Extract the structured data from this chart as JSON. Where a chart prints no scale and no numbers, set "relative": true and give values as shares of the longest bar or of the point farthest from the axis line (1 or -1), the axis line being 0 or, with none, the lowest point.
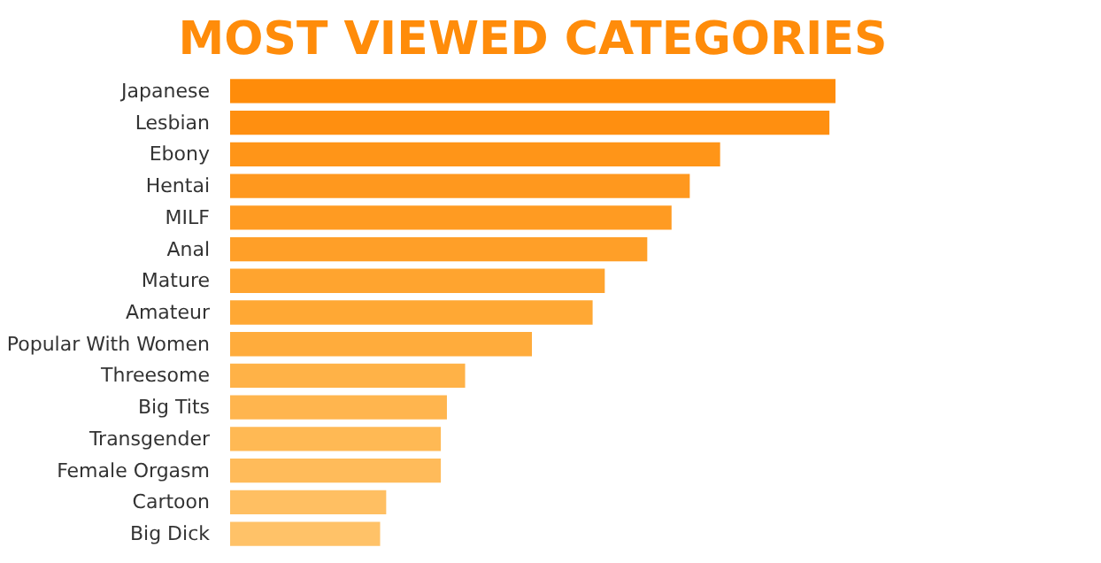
{
  "chart_data": {
    "type": "bar",
    "orientation": "horizontal",
    "relative": true,
    "title": "MOST VIEWED CATEGORIES",
    "categories": [
      "Japanese",
      "Lesbian",
      "Ebony",
      "Hentai",
      "MILF",
      "Anal",
      "Mature",
      "Amateur",
      "Popular With Women",
      "Threesome",
      "Big Tits",
      "Transgender",
      "Female Orgasm",
      "Cartoon",
      "Big Dick"
    ],
    "values": [
      1,
      0.99,
      0.81,
      0.76,
      0.73,
      0.69,
      0.62,
      0.6,
      0.5,
      0.39,
      0.36,
      0.35,
      0.35,
      0.26,
      0.25
    ],
    "colors": [
      "#ff8c0a",
      "#ff8f10",
      "#ff9518",
      "#ff981e",
      "#ff9b22",
      "#ff9f28",
      "#ffa42f",
      "#ffa834",
      "#ffac3c",
      "#ffb247",
      "#ffb54e",
      "#ffb954",
      "#ffbb5a",
      "#ffbf62",
      "#ffc268"
    ]
  }
}
